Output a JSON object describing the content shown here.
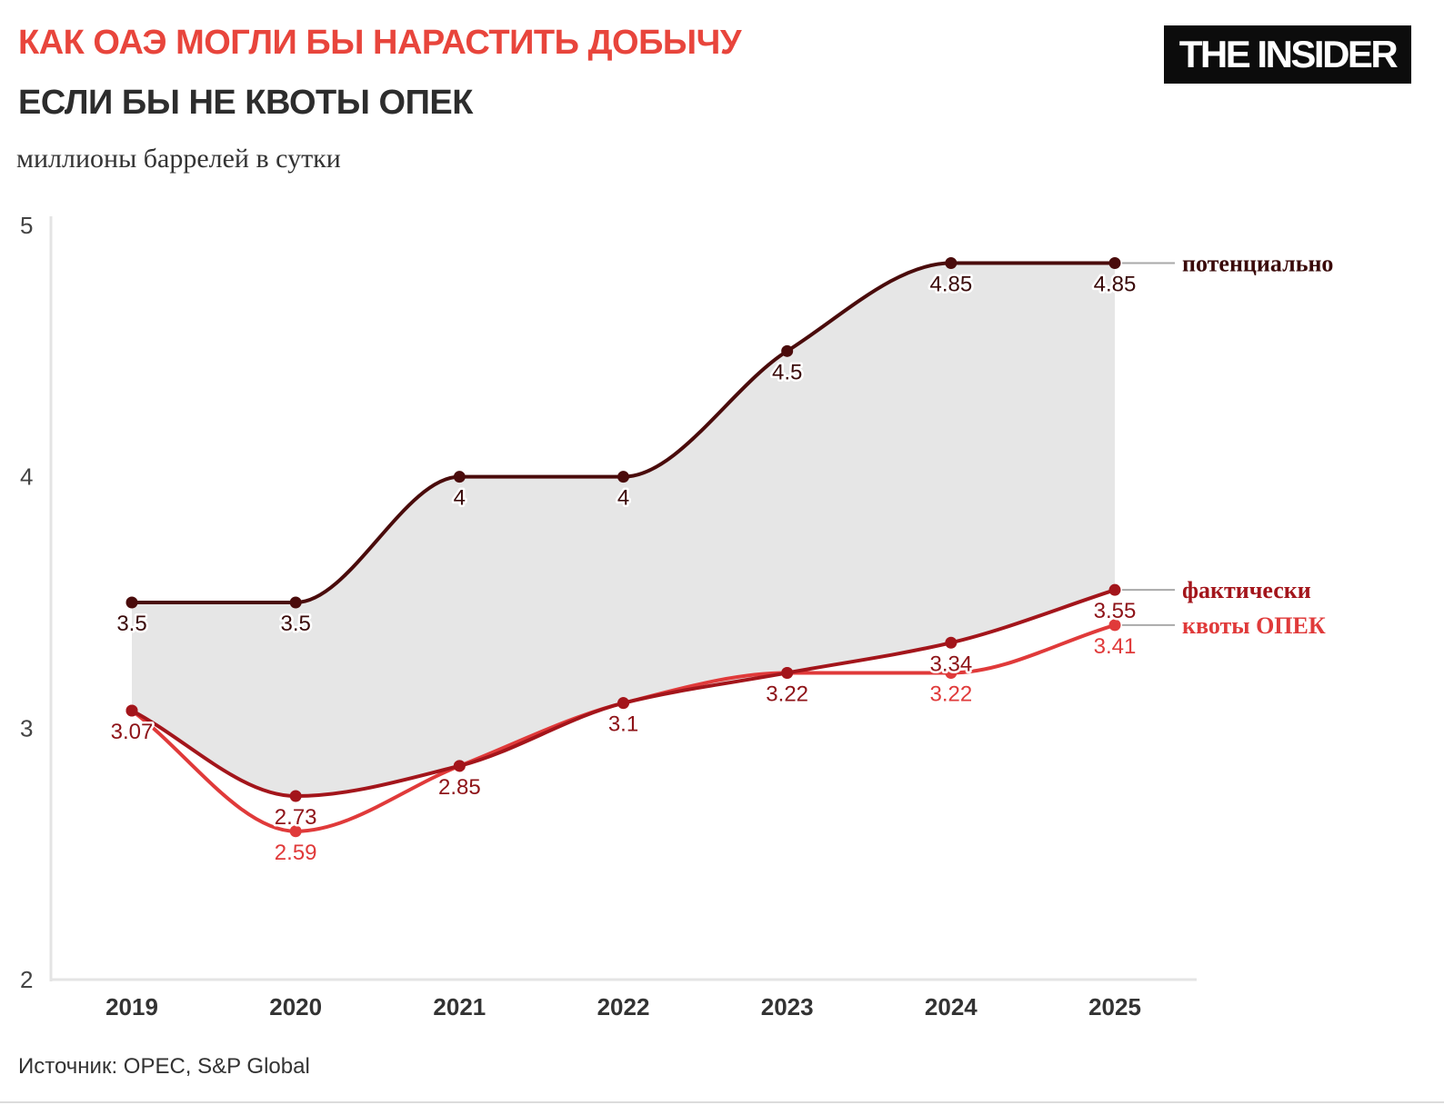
{
  "header": {
    "title": "КАК ОАЭ МОГЛИ БЫ НАРАСТИТЬ ДОБЫЧУ",
    "subtitle": "ЕСЛИ БЫ НЕ КВОТЫ ОПЕК",
    "unit": "миллионы баррелей в сутки"
  },
  "logo": {
    "text": "THE INSIDER"
  },
  "footer": {
    "source": "Источник: OPEC, S&P Global"
  },
  "chart_data": {
    "type": "line",
    "title": "КАК ОАЭ МОГЛИ БЫ НАРАСТИТЬ ДОБЫЧУ",
    "subtitle": "ЕСЛИ БЫ НЕ КВОТЫ ОПЕК",
    "ylabel": "миллионы баррелей в сутки",
    "xlabel": "",
    "x": [
      2019,
      2020,
      2021,
      2022,
      2023,
      2024,
      2025
    ],
    "ylim": [
      2,
      5
    ],
    "yticks": [
      2,
      3,
      4,
      5
    ],
    "grid": false,
    "legend": "direct labels at right end of lines",
    "series": [
      {
        "name": "потенциально",
        "values": [
          3.5,
          3.5,
          4,
          4,
          4.5,
          4.85,
          4.85
        ],
        "color": "#4a0b0b"
      },
      {
        "name": "фактически",
        "values": [
          3.07,
          2.73,
          2.85,
          3.1,
          3.22,
          3.34,
          3.55
        ],
        "color": "#a3151b"
      },
      {
        "name": "квоты ОПЕК",
        "values": [
          3.07,
          2.59,
          2.85,
          3.1,
          3.22,
          3.22,
          3.41
        ],
        "color": "#e03a3a"
      }
    ],
    "shaded_area": {
      "between": [
        "потенциально",
        "фактически"
      ],
      "color": "#e6e6e6"
    }
  }
}
